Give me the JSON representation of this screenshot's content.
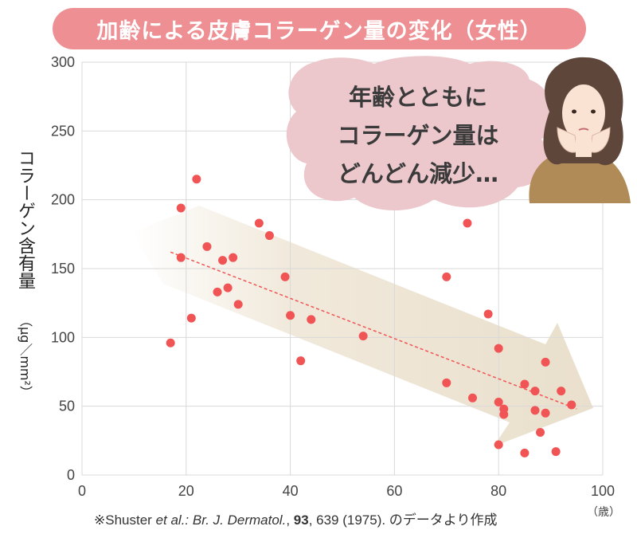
{
  "title": "加齢による皮膚コラーゲン量の変化（女性）",
  "speech_bubble": {
    "lines": [
      "年齢とともに",
      "コラーゲン量は",
      "どんどん減少…"
    ]
  },
  "source": {
    "prefix": "※Shuster ",
    "etal": "et al.: Br. J. Dermatol.",
    "sep": ", ",
    "volume": "93",
    "rest": ", 639 (1975). のデータより作成"
  },
  "colors": {
    "title_bg": "#ed8f93",
    "point": "#f05454",
    "trend": "#f05454",
    "bubble": "#ecc7cc",
    "arrow": "#efe6d6",
    "grid": "#d9d9d9"
  },
  "chart_data": {
    "type": "scatter",
    "title": "加齢による皮膚コラーゲン量の変化（女性）",
    "ylabel": "コラーゲン含有量",
    "yunit": "（μg／mm²）",
    "xlabel": "",
    "xunit": "（歳）",
    "xlim": [
      0,
      100
    ],
    "ylim": [
      0,
      300
    ],
    "xticks": [
      0,
      20,
      40,
      60,
      80,
      100
    ],
    "yticks": [
      0,
      50,
      100,
      150,
      200,
      250,
      300
    ],
    "grid": true,
    "points": [
      {
        "x": 17,
        "y": 96
      },
      {
        "x": 19,
        "y": 194
      },
      {
        "x": 19,
        "y": 158
      },
      {
        "x": 21,
        "y": 114
      },
      {
        "x": 22,
        "y": 215
      },
      {
        "x": 24,
        "y": 166
      },
      {
        "x": 26,
        "y": 133
      },
      {
        "x": 27,
        "y": 156
      },
      {
        "x": 28,
        "y": 136
      },
      {
        "x": 29,
        "y": 158
      },
      {
        "x": 30,
        "y": 124
      },
      {
        "x": 34,
        "y": 183
      },
      {
        "x": 36,
        "y": 174
      },
      {
        "x": 39,
        "y": 144
      },
      {
        "x": 40,
        "y": 116
      },
      {
        "x": 42,
        "y": 83
      },
      {
        "x": 44,
        "y": 113
      },
      {
        "x": 54,
        "y": 101
      },
      {
        "x": 70,
        "y": 144
      },
      {
        "x": 70,
        "y": 67
      },
      {
        "x": 74,
        "y": 183
      },
      {
        "x": 75,
        "y": 56
      },
      {
        "x": 78,
        "y": 117
      },
      {
        "x": 80,
        "y": 92
      },
      {
        "x": 80,
        "y": 53
      },
      {
        "x": 80,
        "y": 22
      },
      {
        "x": 81,
        "y": 48
      },
      {
        "x": 81,
        "y": 44
      },
      {
        "x": 85,
        "y": 66
      },
      {
        "x": 85,
        "y": 16
      },
      {
        "x": 87,
        "y": 61
      },
      {
        "x": 87,
        "y": 47
      },
      {
        "x": 88,
        "y": 31
      },
      {
        "x": 89,
        "y": 82
      },
      {
        "x": 89,
        "y": 45
      },
      {
        "x": 91,
        "y": 17
      },
      {
        "x": 92,
        "y": 61
      },
      {
        "x": 94,
        "y": 51
      }
    ],
    "trendline": {
      "x": [
        17,
        95
      ],
      "y": [
        162,
        48
      ]
    }
  }
}
